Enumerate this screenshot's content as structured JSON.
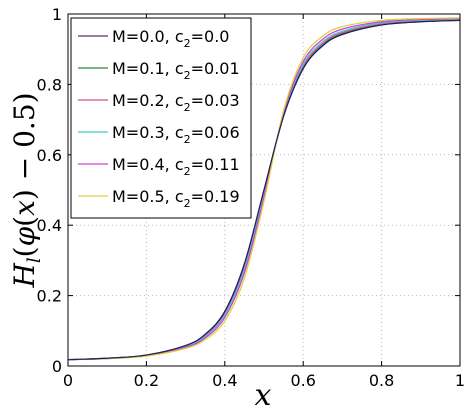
{
  "chart_data": {
    "type": "line",
    "title": "",
    "xlabel": "x",
    "ylabel": "H_l(φ(x) − 0.5)",
    "xlim": [
      0,
      1
    ],
    "ylim": [
      0,
      1
    ],
    "xticks": [
      "0",
      "0.2",
      "0.4",
      "0.6",
      "0.8",
      "1"
    ],
    "yticks": [
      "0",
      "0.2",
      "0.4",
      "0.6",
      "0.8",
      "1"
    ],
    "grid": true,
    "legend_position": "top-left",
    "x": [
      0,
      0.1,
      0.2,
      0.3,
      0.35,
      0.4,
      0.45,
      0.5,
      0.55,
      0.6,
      0.65,
      0.7,
      0.8,
      0.9,
      1.0
    ],
    "series": [
      {
        "name": "M=0.0, c2=0.0",
        "label_main": "M=0.0, c",
        "label_sub": "2",
        "label_end": "=0.0",
        "color": "#5a2a7a",
        "values": [
          0.018,
          0.022,
          0.031,
          0.058,
          0.09,
          0.155,
          0.29,
          0.5,
          0.71,
          0.845,
          0.91,
          0.942,
          0.969,
          0.978,
          0.982
        ]
      },
      {
        "name": "M=0.1, c2=0.01",
        "label_main": "M=0.1, c",
        "label_sub": "2",
        "label_end": "=0.01",
        "color": "#2e8b2e",
        "values": [
          0.018,
          0.022,
          0.031,
          0.058,
          0.089,
          0.153,
          0.287,
          0.498,
          0.711,
          0.847,
          0.912,
          0.944,
          0.97,
          0.979,
          0.983
        ]
      },
      {
        "name": "M=0.2, c2=0.03",
        "label_main": "M=0.2, c",
        "label_sub": "2",
        "label_end": "=0.03",
        "color": "#d0507a",
        "values": [
          0.018,
          0.022,
          0.03,
          0.057,
          0.087,
          0.15,
          0.282,
          0.494,
          0.713,
          0.851,
          0.916,
          0.947,
          0.972,
          0.98,
          0.984
        ]
      },
      {
        "name": "M=0.3, c2=0.06",
        "label_main": "M=0.3, c",
        "label_sub": "2",
        "label_end": "=0.06",
        "color": "#40c8d8",
        "values": [
          0.018,
          0.021,
          0.03,
          0.055,
          0.084,
          0.145,
          0.275,
          0.488,
          0.716,
          0.857,
          0.921,
          0.951,
          0.975,
          0.982,
          0.985
        ]
      },
      {
        "name": "M=0.4, c2=0.11",
        "label_main": "M=0.4, c",
        "label_sub": "2",
        "label_end": "=0.11",
        "color": "#d040d0",
        "values": [
          0.018,
          0.021,
          0.029,
          0.053,
          0.08,
          0.138,
          0.265,
          0.48,
          0.72,
          0.865,
          0.928,
          0.957,
          0.978,
          0.984,
          0.987
        ]
      },
      {
        "name": "M=0.5, c2=0.19",
        "label_main": "M=0.5, c",
        "label_sub": "2",
        "label_end": "=0.19",
        "color": "#e0d040",
        "values": [
          0.018,
          0.021,
          0.028,
          0.05,
          0.075,
          0.128,
          0.25,
          0.468,
          0.726,
          0.876,
          0.937,
          0.964,
          0.982,
          0.987,
          0.989
        ]
      }
    ]
  }
}
